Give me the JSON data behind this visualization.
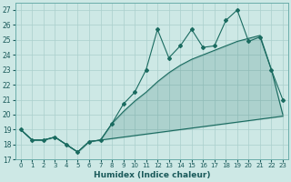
{
  "xlabel": "Humidex (Indice chaleur)",
  "bg_color": "#cde8e5",
  "grid_color": "#aacfcc",
  "line_color": "#1a6b60",
  "xlim": [
    -0.5,
    23.5
  ],
  "ylim": [
    17,
    27.5
  ],
  "yticks": [
    17,
    18,
    19,
    20,
    21,
    22,
    23,
    24,
    25,
    26,
    27
  ],
  "xticks": [
    0,
    1,
    2,
    3,
    4,
    5,
    6,
    7,
    8,
    9,
    10,
    11,
    12,
    13,
    14,
    15,
    16,
    17,
    18,
    19,
    20,
    21,
    22,
    23
  ],
  "main_y": [
    19,
    18.3,
    18.3,
    18.5,
    18.0,
    17.5,
    18.2,
    18.3,
    19.4,
    20.7,
    21.5,
    23.0,
    25.7,
    23.8,
    24.6,
    25.7,
    24.5,
    24.6,
    26.3,
    27.0,
    24.9,
    25.2,
    23.0,
    21.0
  ],
  "low_y": [
    19,
    18.3,
    18.3,
    18.5,
    18.0,
    17.5,
    18.2,
    18.3,
    18.4,
    18.5,
    18.6,
    18.7,
    18.8,
    18.9,
    19.0,
    19.1,
    19.2,
    19.3,
    19.4,
    19.5,
    19.6,
    19.7,
    19.8,
    19.9
  ],
  "diag_y": [
    19,
    18.3,
    18.3,
    18.5,
    18.0,
    17.5,
    18.2,
    18.3,
    19.4,
    20.2,
    20.9,
    21.5,
    22.2,
    22.8,
    23.3,
    23.7,
    24.0,
    24.3,
    24.6,
    24.9,
    25.1,
    25.3,
    23.0,
    20.0
  ]
}
